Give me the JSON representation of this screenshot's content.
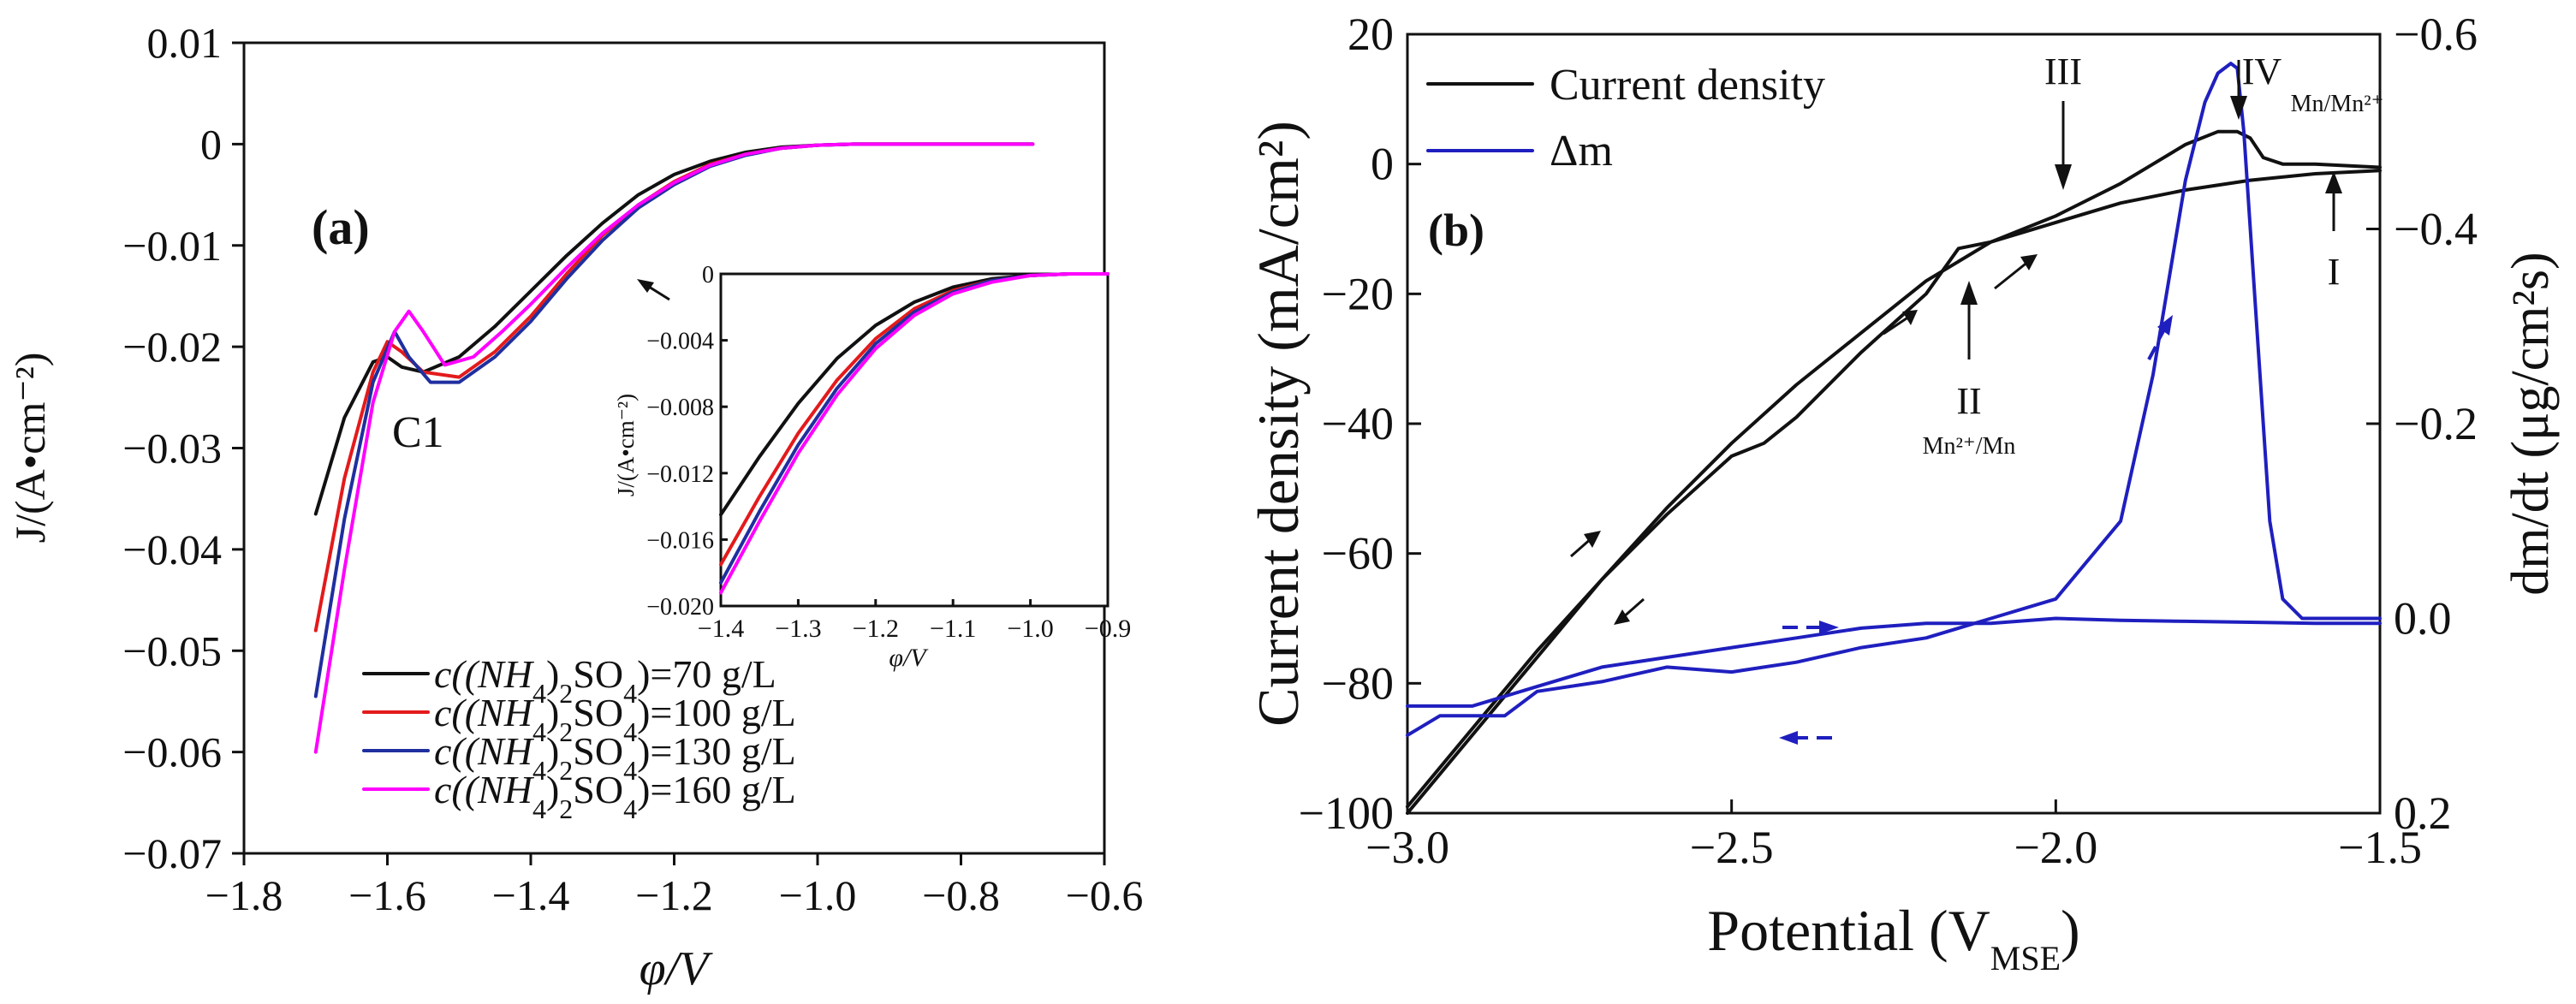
{
  "chart_data": [
    {
      "type": "line",
      "panel_label": "(a)",
      "xlabel": "φ/V",
      "ylabel": "J/(A•cm⁻²)",
      "xlim": [
        -1.8,
        -0.6
      ],
      "ylim": [
        -0.07,
        0.01
      ],
      "xticks": [
        -1.8,
        -1.6,
        -1.4,
        -1.2,
        -1.0,
        -0.8,
        -0.6
      ],
      "yticks": [
        -0.07,
        -0.06,
        -0.05,
        -0.04,
        -0.03,
        -0.02,
        -0.01,
        0,
        0.01
      ],
      "xtick_labels": [
        "−1.8",
        "−1.6",
        "−1.4",
        "−1.2",
        "−1.0",
        "−0.8",
        "−0.6"
      ],
      "ytick_labels": [
        "−0.07",
        "−0.06",
        "−0.05",
        "−0.04",
        "−0.03",
        "−0.02",
        "−0.01",
        "0",
        "0.01"
      ],
      "annotation": "C1",
      "legend_position": "bottom-left",
      "series": [
        {
          "name": "c((NH4)2SO4)=70 g/L",
          "legend_main": "c((NH",
          "legend_sub1": "4",
          "legend_mid": ")",
          "legend_sub2": "2",
          "legend_tail": "SO",
          "legend_sub3": "4",
          "legend_end": ")=70 g/L",
          "color": "#111111",
          "x": [
            -1.7,
            -1.66,
            -1.62,
            -1.6,
            -1.58,
            -1.55,
            -1.5,
            -1.45,
            -1.4,
            -1.35,
            -1.3,
            -1.25,
            -1.2,
            -1.15,
            -1.1,
            -1.05,
            -1.0,
            -0.95,
            -0.9,
            -0.8,
            -0.7
          ],
          "y": [
            -0.0365,
            -0.027,
            -0.0215,
            -0.021,
            -0.022,
            -0.0225,
            -0.021,
            -0.018,
            -0.0145,
            -0.011,
            -0.0078,
            -0.005,
            -0.003,
            -0.0017,
            -0.0008,
            -0.0003,
            -0.0001,
            0,
            0,
            0,
            0
          ]
        },
        {
          "name": "c((NH4)2SO4)=100 g/L",
          "legend_main": "c((NH",
          "legend_sub1": "4",
          "legend_mid": ")",
          "legend_sub2": "2",
          "legend_tail": "SO",
          "legend_sub3": "4",
          "legend_end": ")=100 g/L",
          "color": "#e31a1c",
          "x": [
            -1.7,
            -1.66,
            -1.62,
            -1.6,
            -1.58,
            -1.55,
            -1.5,
            -1.45,
            -1.4,
            -1.35,
            -1.3,
            -1.25,
            -1.2,
            -1.15,
            -1.1,
            -1.05,
            -1.0,
            -0.95,
            -0.9,
            -0.8,
            -0.7
          ],
          "y": [
            -0.048,
            -0.033,
            -0.0225,
            -0.0195,
            -0.0205,
            -0.0225,
            -0.023,
            -0.0205,
            -0.017,
            -0.0128,
            -0.009,
            -0.006,
            -0.0037,
            -0.002,
            -0.001,
            -0.0004,
            -0.0001,
            0,
            0,
            0,
            0
          ]
        },
        {
          "name": "c((NH4)2SO4)=130 g/L",
          "legend_main": "c((NH",
          "legend_sub1": "4",
          "legend_mid": ")",
          "legend_sub2": "2",
          "legend_tail": "SO",
          "legend_sub3": "4",
          "legend_end": ")=130 g/L",
          "color": "#1f2f9f",
          "x": [
            -1.7,
            -1.66,
            -1.62,
            -1.59,
            -1.57,
            -1.54,
            -1.5,
            -1.45,
            -1.4,
            -1.35,
            -1.3,
            -1.25,
            -1.2,
            -1.15,
            -1.1,
            -1.05,
            -1.0,
            -0.95,
            -0.9,
            -0.8,
            -0.7
          ],
          "y": [
            -0.0545,
            -0.037,
            -0.0235,
            -0.0185,
            -0.021,
            -0.0235,
            -0.0235,
            -0.021,
            -0.0175,
            -0.0133,
            -0.0095,
            -0.0063,
            -0.004,
            -0.0022,
            -0.0011,
            -0.0004,
            -0.0001,
            0,
            0,
            0,
            0
          ]
        },
        {
          "name": "c((NH4)2SO4)=160 g/L",
          "legend_main": "c((NH",
          "legend_sub1": "4",
          "legend_mid": ")",
          "legend_sub2": "2",
          "legend_tail": "SO",
          "legend_sub3": "4",
          "legend_end": ")=160 g/L",
          "color": "#ff00ff",
          "x": [
            -1.7,
            -1.66,
            -1.62,
            -1.59,
            -1.57,
            -1.55,
            -1.52,
            -1.48,
            -1.44,
            -1.4,
            -1.35,
            -1.3,
            -1.25,
            -1.2,
            -1.15,
            -1.1,
            -1.05,
            -1.0,
            -0.95,
            -0.9,
            -0.8,
            -0.7
          ],
          "y": [
            -0.06,
            -0.042,
            -0.0255,
            -0.0185,
            -0.0165,
            -0.0185,
            -0.0218,
            -0.021,
            -0.0185,
            -0.0158,
            -0.0122,
            -0.0088,
            -0.006,
            -0.0038,
            -0.0021,
            -0.001,
            -0.0004,
            -0.0001,
            0,
            0,
            0,
            0
          ]
        }
      ],
      "inset": {
        "xlabel": "φ/V",
        "ylabel": "J/(A•cm⁻²)",
        "xlim": [
          -1.4,
          -0.9
        ],
        "ylim": [
          -0.02,
          0
        ],
        "xticks": [
          -1.4,
          -1.3,
          -1.2,
          -1.1,
          -1.0,
          -0.9
        ],
        "yticks": [
          -0.02,
          -0.016,
          -0.012,
          -0.008,
          -0.004,
          0
        ],
        "xtick_labels": [
          "−1.4",
          "−1.3",
          "−1.2",
          "−1.1",
          "−1.0",
          "−0.9"
        ],
        "ytick_labels": [
          "−0.020",
          "−0.016",
          "−0.012",
          "−0.008",
          "−0.004",
          "0"
        ],
        "series": [
          {
            "color": "#111111",
            "x": [
              -1.4,
              -1.35,
              -1.3,
              -1.25,
              -1.2,
              -1.15,
              -1.1,
              -1.05,
              -1.0,
              -0.95,
              -0.9
            ],
            "y": [
              -0.0145,
              -0.011,
              -0.0078,
              -0.0051,
              -0.0031,
              -0.0017,
              -0.0008,
              -0.0003,
              -0.0001,
              0,
              0
            ]
          },
          {
            "color": "#e31a1c",
            "x": [
              -1.4,
              -1.35,
              -1.3,
              -1.25,
              -1.2,
              -1.15,
              -1.1,
              -1.05,
              -1.0,
              -0.95,
              -0.9
            ],
            "y": [
              -0.0175,
              -0.0134,
              -0.0096,
              -0.0064,
              -0.0039,
              -0.0021,
              -0.001,
              -0.0004,
              -0.0001,
              0,
              0
            ]
          },
          {
            "color": "#1f2f9f",
            "x": [
              -1.4,
              -1.35,
              -1.3,
              -1.25,
              -1.2,
              -1.15,
              -1.1,
              -1.05,
              -1.0,
              -0.95,
              -0.9
            ],
            "y": [
              -0.0186,
              -0.0143,
              -0.0103,
              -0.0069,
              -0.0042,
              -0.0023,
              -0.0011,
              -0.0004,
              -0.0001,
              0,
              0
            ]
          },
          {
            "color": "#ff00ff",
            "x": [
              -1.4,
              -1.35,
              -1.3,
              -1.25,
              -1.2,
              -1.15,
              -1.1,
              -1.05,
              -1.0,
              -0.95,
              -0.9
            ],
            "y": [
              -0.0192,
              -0.0149,
              -0.0108,
              -0.0073,
              -0.0045,
              -0.0025,
              -0.0012,
              -0.0005,
              -0.0001,
              0,
              0
            ]
          }
        ]
      }
    },
    {
      "type": "line",
      "panel_label": "(b)",
      "xlabel": "Potential (V",
      "xlabel_sub": "MSE",
      "xlabel_end": ")",
      "ylabel": "Current density (mA/cm²)",
      "y2label": "dm/dt (μg/cm²s)",
      "xlim": [
        -3.0,
        -1.5
      ],
      "ylim": [
        -100,
        20
      ],
      "y2lim": [
        0.2,
        -0.6
      ],
      "xticks": [
        -3.0,
        -2.5,
        -2.0,
        -1.5
      ],
      "yticks": [
        -100,
        -80,
        -60,
        -40,
        -20,
        0,
        20
      ],
      "y2ticks": [
        0.2,
        0.0,
        -0.2,
        -0.4,
        -0.6
      ],
      "xtick_labels": [
        "−3.0",
        "−2.5",
        "−2.0",
        "−1.5"
      ],
      "ytick_labels": [
        "−100",
        "−80",
        "−60",
        "−40",
        "−20",
        "0",
        "20"
      ],
      "y2tick_labels": [
        "0.2",
        "0.0",
        "−0.2",
        "−0.4",
        "−0.6"
      ],
      "legend_position": "top-left",
      "legend": [
        "Current density",
        "Δm"
      ],
      "annotations": [
        "I",
        "II",
        "Mn²⁺/Mn",
        "III",
        "IV",
        "Mn/Mn²⁺"
      ],
      "series": [
        {
          "name": "Current density (forward)",
          "axis": "left",
          "color": "#111111",
          "x": [
            -3.0,
            -2.9,
            -2.8,
            -2.7,
            -2.6,
            -2.5,
            -2.4,
            -2.3,
            -2.2,
            -2.1,
            -2.0,
            -1.9,
            -1.85,
            -1.8,
            -1.75,
            -1.72,
            -1.7,
            -1.68,
            -1.65,
            -1.6,
            -1.5
          ],
          "y": [
            -100,
            -88,
            -76,
            -64,
            -53,
            -43,
            -34,
            -26,
            -18,
            -12,
            -8,
            -3,
            0,
            3,
            5,
            5,
            4,
            1,
            0,
            0,
            -0.5
          ]
        },
        {
          "name": "Current density (reverse)",
          "axis": "left",
          "color": "#111111",
          "x": [
            -1.5,
            -1.6,
            -1.7,
            -1.8,
            -1.9,
            -2.0,
            -2.1,
            -2.15,
            -2.2,
            -2.3,
            -2.4,
            -2.45,
            -2.5,
            -2.6,
            -2.7,
            -2.8,
            -2.9,
            -3.0
          ],
          "y": [
            -1,
            -1.5,
            -2.5,
            -4,
            -6,
            -9,
            -12,
            -13,
            -20,
            -29,
            -39,
            -43,
            -45,
            -54,
            -64,
            -75,
            -87,
            -99
          ]
        },
        {
          "name": "Δm (forward)",
          "axis": "right",
          "color": "#1f1fbf",
          "x": [
            -3.0,
            -2.95,
            -2.9,
            -2.85,
            -2.8,
            -2.7,
            -2.6,
            -2.5,
            -2.45,
            -2.4,
            -2.3,
            -2.2,
            -2.15,
            -2.1,
            -2.0,
            -1.9,
            -1.85,
            -1.8,
            -1.77,
            -1.75,
            -1.73,
            -1.72,
            -1.71,
            -1.69,
            -1.67,
            -1.65,
            -1.62,
            -1.6,
            -1.55,
            -1.5
          ],
          "y": [
            0.12,
            0.1,
            0.1,
            0.1,
            0.075,
            0.065,
            0.05,
            0.055,
            0.05,
            0.045,
            0.03,
            0.02,
            0.01,
            0,
            -0.02,
            -0.1,
            -0.25,
            -0.45,
            -0.53,
            -0.56,
            -0.57,
            -0.565,
            -0.5,
            -0.3,
            -0.1,
            -0.02,
            0.0,
            0.0,
            0.0,
            0.0
          ]
        },
        {
          "name": "Δm (reverse)",
          "axis": "right",
          "color": "#1f1fbf",
          "x": [
            -1.5,
            -1.6,
            -1.7,
            -1.8,
            -1.9,
            -2.0,
            -2.1,
            -2.2,
            -2.3,
            -2.4,
            -2.5,
            -2.6,
            -2.7,
            -2.8,
            -2.9,
            -3.0
          ],
          "y": [
            0.005,
            0.005,
            0.004,
            0.003,
            0.002,
            0.0,
            0.005,
            0.005,
            0.01,
            0.02,
            0.03,
            0.04,
            0.05,
            0.07,
            0.09,
            0.09
          ]
        }
      ]
    }
  ]
}
